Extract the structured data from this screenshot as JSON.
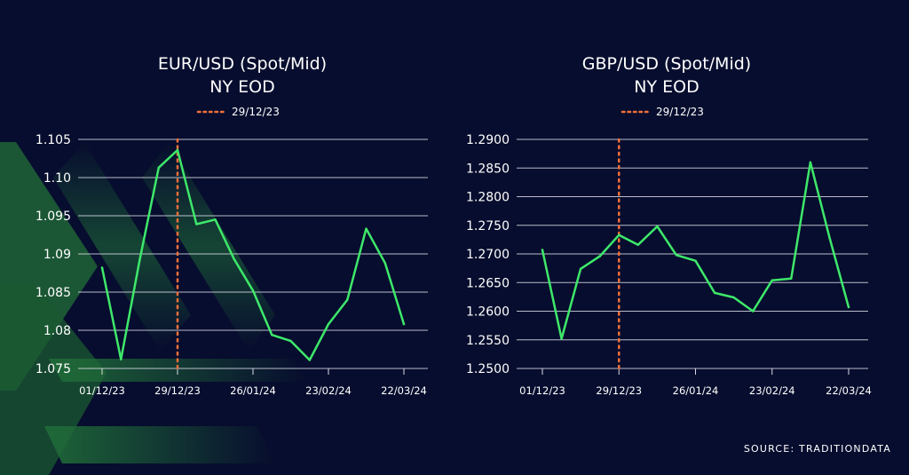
{
  "source": "SOURCE: TRADITIONDATA",
  "colors": {
    "background": "#070d2e",
    "line": "#3ee86a",
    "marker": "#f2703a",
    "grid": "#d9dbe6",
    "decoration": "#1e5a33"
  },
  "chart_data": [
    {
      "type": "line",
      "title": [
        "EUR/USD (Spot/Mid)",
        "NY EOD"
      ],
      "marker": {
        "label": "29/12/23",
        "x_index": 4
      },
      "yticks": [
        "1.075",
        "1.08",
        "1.085",
        "1.09",
        "1.095",
        "1.10",
        "1.105"
      ],
      "ylim": [
        1.075,
        1.105
      ],
      "xticks": [
        {
          "label": "01/12/23",
          "index": 0
        },
        {
          "label": "29/12/23",
          "index": 4
        },
        {
          "label": "26/01/24",
          "index": 8
        },
        {
          "label": "23/02/24",
          "index": 12
        },
        {
          "label": "22/03/24",
          "index": 16
        }
      ],
      "x_count": 17,
      "grid": true,
      "values": [
        1.0882,
        1.0762,
        1.0893,
        1.1013,
        1.1036,
        1.0939,
        1.0945,
        1.0893,
        1.0852,
        1.0794,
        1.0786,
        1.0761,
        1.0808,
        1.084,
        1.0933,
        1.0888,
        1.0808
      ]
    },
    {
      "type": "line",
      "title": [
        "GBP/USD (Spot/Mid)",
        "NY EOD"
      ],
      "marker": {
        "label": "29/12/23",
        "x_index": 4
      },
      "yticks": [
        "1.2500",
        "1.2550",
        "1.2600",
        "1.2650",
        "1.2700",
        "1.2750",
        "1.2800",
        "1.2850",
        "1.2900"
      ],
      "ylim": [
        1.25,
        1.29
      ],
      "xticks": [
        {
          "label": "01/12/23",
          "index": 0
        },
        {
          "label": "29/12/23",
          "index": 4
        },
        {
          "label": "26/01/24",
          "index": 8
        },
        {
          "label": "23/02/24",
          "index": 12
        },
        {
          "label": "22/03/24",
          "index": 16
        }
      ],
      "x_count": 17,
      "grid": true,
      "values": [
        1.2707,
        1.2552,
        1.2674,
        1.2696,
        1.2733,
        1.2716,
        1.2748,
        1.2698,
        1.2688,
        1.2632,
        1.2624,
        1.26,
        1.2654,
        1.2657,
        1.286,
        1.2729,
        1.2607
      ]
    }
  ]
}
